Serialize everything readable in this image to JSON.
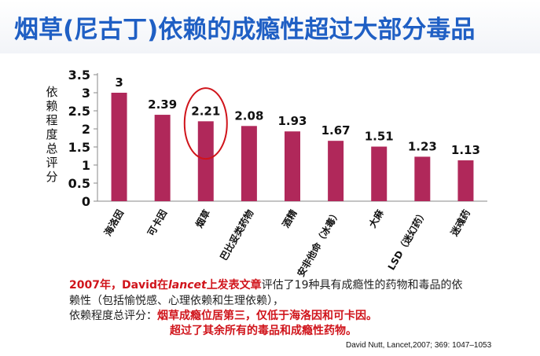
{
  "header": {
    "title": "烟草(尼古丁)依赖的成瘾性超过大部分毒品"
  },
  "colors": {
    "bar": "#b0285a",
    "title": "#1f5fc4",
    "highlight": "#d0141b"
  },
  "chart_data": {
    "type": "bar",
    "title": "",
    "xlabel": "",
    "ylabel": "依赖程度总评分",
    "ylim": [
      0,
      3.5
    ],
    "yticks": [
      "0",
      "0.5",
      "1",
      "1.5",
      "2",
      "2.5",
      "3",
      "3.5"
    ],
    "categories": [
      "海洛因",
      "可卡因",
      "烟草",
      "巴比妥类药物",
      "酒精",
      "安非他命（冰毒）",
      "大麻",
      "LSD（迷幻药）",
      "迷魂药"
    ],
    "values": [
      3,
      2.39,
      2.21,
      2.08,
      1.93,
      1.67,
      1.51,
      1.23,
      1.13
    ],
    "value_labels": [
      "3",
      "2.39",
      "2.21",
      "2.08",
      "1.93",
      "1.67",
      "1.51",
      "1.23",
      "1.13"
    ],
    "highlighted_category": "烟草",
    "grid": false
  },
  "caption": {
    "line1_red1": "2007年，",
    "line1_red2": "David在",
    "line1_italic": "lancet",
    "line1_red3": "上发表文章",
    "line1_black": "评估了19种具有成瘾性的药物和毒品的依",
    "line2": "赖性（包括愉悦感、心理依赖和生理依赖），",
    "line3_black": "依赖程度总评分：",
    "line3_red": "烟草成瘾位居第三，仅低于海洛因和可卡因。",
    "line4_red": "超过了其余所有的毒品和成瘾性药物。"
  },
  "citation": "David Nutt, Lancet,2007; 369: 1047–1053"
}
